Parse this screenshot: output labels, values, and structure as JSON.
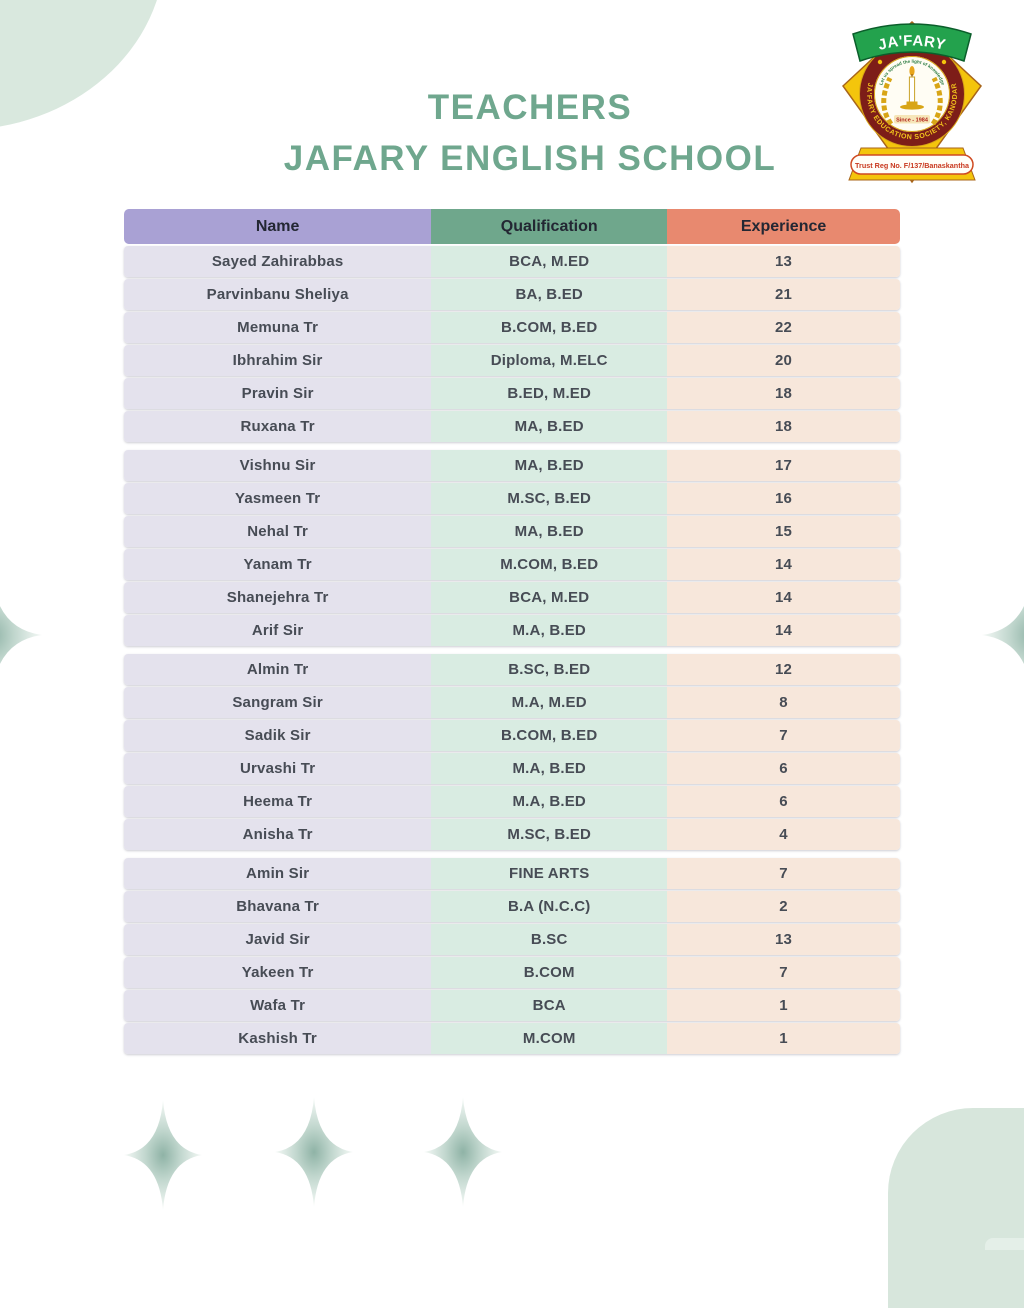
{
  "page": {
    "title_line1": "TEACHERS",
    "title_line2": "JAFARY ENGLISH SCHOOL"
  },
  "logo": {
    "banner": "JA'FARY",
    "motto": "Let us spread the light of knowledge",
    "ring_text": "JA'FARY EDUCATION SOCIETY, KANODAR",
    "since": "Since - 1984",
    "trust": "Trust Reg No. F/137/Banaskantha"
  },
  "colors": {
    "title_green": "#6fa78e",
    "header_name": "#a9a1d4",
    "header_qualification": "#6fa78c",
    "header_experience": "#e8896f",
    "cell_name": "#e4e2ed",
    "cell_qualification": "#d9ece2",
    "cell_experience": "#f7e7db",
    "blob_green": "#d9e8de",
    "logo_yellow": "#f4c50c",
    "logo_green": "#23a24d",
    "logo_maroon": "#7d1d18"
  },
  "table": {
    "columns": [
      "Name",
      "Qualification",
      "Experience"
    ],
    "groups": [
      [
        {
          "name": "Sayed Zahirabbas",
          "qualification": "BCA, M.ED",
          "experience": "13"
        },
        {
          "name": "Parvinbanu Sheliya",
          "qualification": "BA, B.ED",
          "experience": "21"
        },
        {
          "name": "Memuna Tr",
          "qualification": "B.COM, B.ED",
          "experience": "22"
        },
        {
          "name": "Ibhrahim Sir",
          "qualification": "Diploma, M.ELC",
          "experience": "20"
        },
        {
          "name": "Pravin Sir",
          "qualification": "B.ED, M.ED",
          "experience": "18"
        },
        {
          "name": "Ruxana Tr",
          "qualification": "MA, B.ED",
          "experience": "18"
        }
      ],
      [
        {
          "name": "Vishnu Sir",
          "qualification": "MA, B.ED",
          "experience": "17"
        },
        {
          "name": "Yasmeen Tr",
          "qualification": "M.SC, B.ED",
          "experience": "16"
        },
        {
          "name": "Nehal Tr",
          "qualification": "MA, B.ED",
          "experience": "15"
        },
        {
          "name": "Yanam Tr",
          "qualification": "M.COM, B.ED",
          "experience": "14"
        },
        {
          "name": "Shanejehra Tr",
          "qualification": "BCA, M.ED",
          "experience": "14"
        },
        {
          "name": "Arif Sir",
          "qualification": "M.A, B.ED",
          "experience": "14"
        }
      ],
      [
        {
          "name": "Almin Tr",
          "qualification": "B.SC, B.ED",
          "experience": "12"
        },
        {
          "name": "Sangram Sir",
          "qualification": "M.A, M.ED",
          "experience": "8"
        },
        {
          "name": "Sadik Sir",
          "qualification": "B.COM, B.ED",
          "experience": "7"
        },
        {
          "name": "Urvashi Tr",
          "qualification": "M.A, B.ED",
          "experience": "6"
        },
        {
          "name": "Heema Tr",
          "qualification": "M.A, B.ED",
          "experience": "6"
        },
        {
          "name": "Anisha Tr",
          "qualification": "M.SC, B.ED",
          "experience": "4"
        }
      ],
      [
        {
          "name": "Amin Sir",
          "qualification": "FINE ARTS",
          "experience": "7"
        },
        {
          "name": "Bhavana Tr",
          "qualification": "B.A (N.C.C)",
          "experience": "2"
        },
        {
          "name": "Javid Sir",
          "qualification": "B.SC",
          "experience": "13"
        },
        {
          "name": "Yakeen Tr",
          "qualification": "B.COM",
          "experience": "7"
        },
        {
          "name": "Wafa Tr",
          "qualification": "BCA",
          "experience": "1"
        },
        {
          "name": "Kashish Tr",
          "qualification": "M.COM",
          "experience": "1"
        }
      ]
    ]
  }
}
